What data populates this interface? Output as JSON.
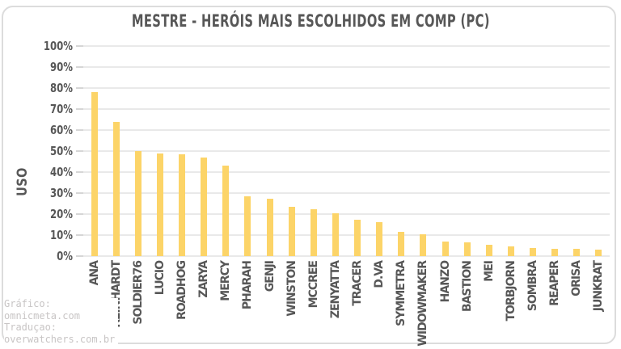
{
  "chart_data": {
    "type": "bar",
    "title": "MESTRE - HERÓIS MAIS ESCOLHIDOS EM COMP (PC)",
    "xlabel": "",
    "ylabel": "USO",
    "ylim": [
      0,
      100
    ],
    "ytick_step": 10,
    "ytick_suffix": "%",
    "grid": true,
    "legend": "none",
    "bar_color": "#fcd468",
    "categories": [
      "ANA",
      "REINHARDT",
      "SOLDIER76",
      "LUCIO",
      "ROADHOG",
      "ZARYA",
      "MERCY",
      "PHARAH",
      "GENJI",
      "WINSTON",
      "MCCREE",
      "ZENYATTA",
      "TRACER",
      "D.VA",
      "SYMMETRA",
      "WIDOWMAKER",
      "HANZO",
      "BASTION",
      "MEI",
      "TORBJORN",
      "SOMBRA",
      "REAPER",
      "ORISA",
      "JUNKRAT"
    ],
    "values": [
      78,
      64,
      50,
      49,
      48.5,
      47,
      43,
      28.5,
      27.5,
      23.5,
      22.5,
      20.5,
      17.5,
      16,
      11.5,
      10.5,
      7,
      6.5,
      5.5,
      4.5,
      4,
      3.5,
      3.5,
      3
    ]
  },
  "credits": {
    "lines": [
      "Gráfico:",
      "omnicmeta.com",
      "Traduçao:",
      "overwatchers.com.br"
    ]
  },
  "colors": {
    "bar": "#fcd468",
    "grid": "#e9e9e9",
    "text": "#575757",
    "panel_border": "#dcdcdc",
    "credits_text": "#c8c5c5",
    "background": "#ffffff"
  }
}
